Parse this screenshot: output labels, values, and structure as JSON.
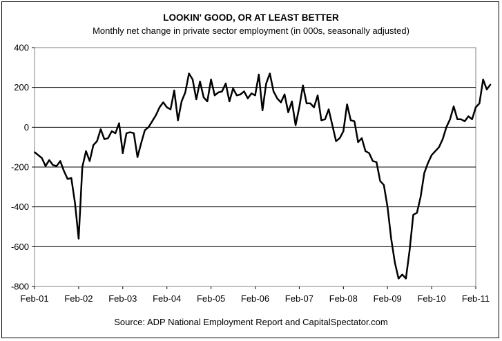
{
  "chart_data": {
    "type": "line",
    "title": "LOOKIN' GOOD, OR AT LEAST BETTER",
    "subtitle": "Monthly net change in private sector employment (in 000s, seasonally adjusted)",
    "source": "Source: ADP National Employment Report and CapitalSpectator.com",
    "xlabel": "",
    "ylabel": "",
    "ylim": [
      -800,
      400
    ],
    "yticks": [
      400,
      200,
      0,
      -200,
      -400,
      -600,
      -800
    ],
    "x_tick_labels": [
      "Feb-01",
      "Feb-02",
      "Feb-03",
      "Feb-04",
      "Feb-05",
      "Feb-06",
      "Feb-07",
      "Feb-08",
      "Feb-09",
      "Feb-10",
      "Feb-11"
    ],
    "x_start": "Feb-01",
    "grid": "horizontal",
    "legend": "none",
    "series": [
      {
        "color": "#000000",
        "values": [
          -125,
          -140,
          -155,
          -195,
          -165,
          -190,
          -195,
          -170,
          -220,
          -260,
          -255,
          -380,
          -560,
          -200,
          -120,
          -170,
          -90,
          -70,
          -10,
          -60,
          -55,
          -20,
          -30,
          20,
          -130,
          -30,
          -25,
          -30,
          -150,
          -80,
          -15,
          0,
          30,
          60,
          100,
          125,
          100,
          90,
          185,
          35,
          130,
          175,
          270,
          240,
          140,
          230,
          150,
          130,
          240,
          160,
          175,
          180,
          220,
          130,
          195,
          160,
          165,
          180,
          145,
          170,
          160,
          265,
          85,
          220,
          270,
          180,
          145,
          125,
          165,
          75,
          130,
          10,
          100,
          210,
          120,
          120,
          100,
          160,
          35,
          40,
          90,
          10,
          -70,
          -55,
          -20,
          115,
          35,
          30,
          -75,
          -55,
          -120,
          -130,
          -170,
          -175,
          -270,
          -290,
          -400,
          -560,
          -680,
          -760,
          -740,
          -760,
          -620,
          -440,
          -430,
          -350,
          -230,
          -180,
          -140,
          -120,
          -100,
          -60,
          0,
          40,
          105,
          40,
          40,
          30,
          55,
          40,
          100,
          120,
          240,
          190,
          215
        ]
      }
    ]
  }
}
